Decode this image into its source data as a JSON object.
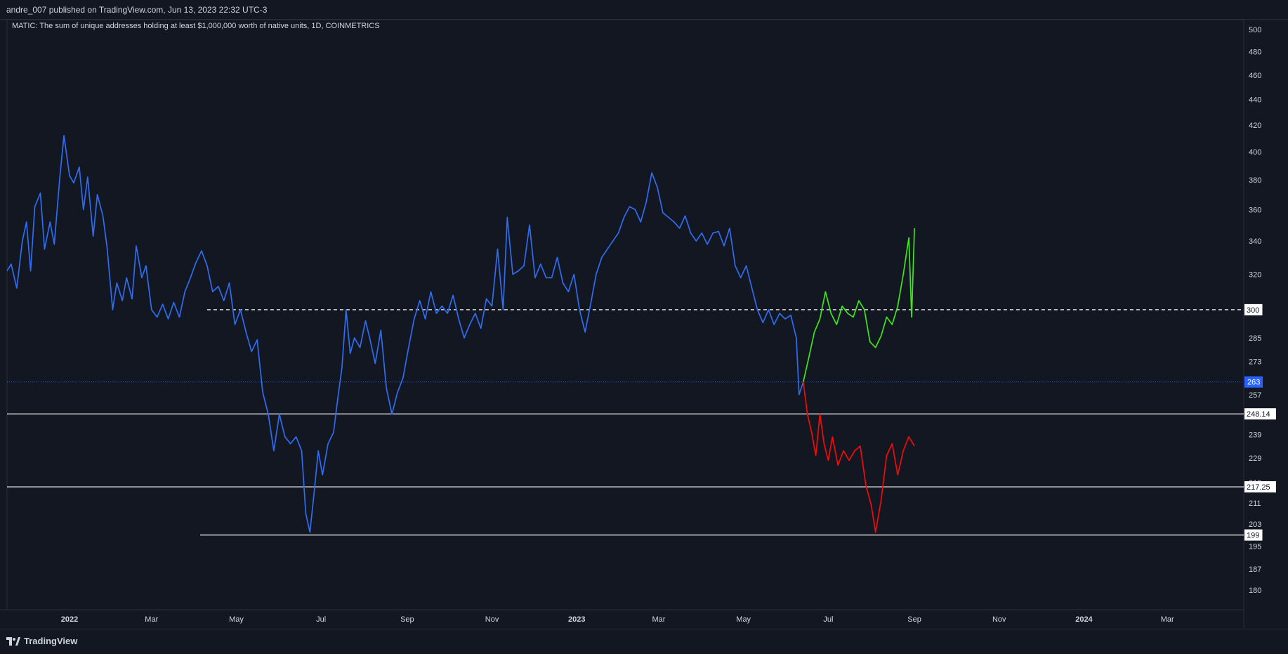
{
  "header": {
    "publisher": "andre_007 published on TradingView.com, Jun 13, 2023 22:32 UTC-3"
  },
  "footer": {
    "brand": "TradingView",
    "logo_icon": "tradingview-logo-icon"
  },
  "colors": {
    "background": "#131722",
    "history": "#2f6cf0",
    "bullish": "#3ee61b",
    "bearish": "#f50a0a",
    "level": "#ffffff",
    "current_price": "#2962ff"
  },
  "chart_data": {
    "type": "line",
    "title": "MATIC: The sum of unique addresses holding at least $1,000,000 worth of native units, 1D, COINMETRICS",
    "y_scale": "log",
    "ylim": [
      180,
      505
    ],
    "xlim": [
      "2021-11-17",
      "2024-04-25"
    ],
    "y_ticks": [
      180,
      187,
      195,
      203,
      211,
      219,
      229,
      239,
      248,
      257,
      263,
      273,
      285,
      300,
      320,
      340,
      360,
      380,
      400,
      420,
      440,
      460,
      480,
      500
    ],
    "x_ticks": [
      {
        "date": "2022-01-01",
        "label": "2022"
      },
      {
        "date": "2022-03-01",
        "label": "Mar"
      },
      {
        "date": "2022-05-01",
        "label": "May"
      },
      {
        "date": "2022-07-01",
        "label": "Jul"
      },
      {
        "date": "2022-09-01",
        "label": "Sep"
      },
      {
        "date": "2022-11-01",
        "label": "Nov"
      },
      {
        "date": "2023-01-01",
        "label": "2023"
      },
      {
        "date": "2023-03-01",
        "label": "Mar"
      },
      {
        "date": "2023-05-01",
        "label": "May"
      },
      {
        "date": "2023-07-01",
        "label": "Jul"
      },
      {
        "date": "2023-09-01",
        "label": "Sep"
      },
      {
        "date": "2023-11-01",
        "label": "Nov"
      },
      {
        "date": "2024-01-01",
        "label": "2024"
      },
      {
        "date": "2024-03-01",
        "label": "Mar"
      }
    ],
    "horizontal_levels": [
      {
        "value": 300,
        "label": "300",
        "style": "dashed",
        "from": "2022-04-10"
      },
      {
        "value": 248.14,
        "label": "248.14",
        "style": "solid",
        "from": "2021-11-17"
      },
      {
        "value": 217.25,
        "label": "217.25",
        "style": "solid",
        "from": "2021-11-17"
      },
      {
        "value": 199,
        "label": "199",
        "style": "solid",
        "from": "2022-04-05"
      }
    ],
    "current_value": {
      "value": 263,
      "label": "263"
    },
    "series": [
      {
        "role": "history",
        "points": [
          [
            "2021-11-17",
            322
          ],
          [
            "2021-11-20",
            326
          ],
          [
            "2021-11-24",
            312
          ],
          [
            "2021-11-28",
            340
          ],
          [
            "2021-12-01",
            352
          ],
          [
            "2021-12-04",
            322
          ],
          [
            "2021-12-07",
            362
          ],
          [
            "2021-12-11",
            371
          ],
          [
            "2021-12-14",
            335
          ],
          [
            "2021-12-18",
            352
          ],
          [
            "2021-12-21",
            338
          ],
          [
            "2021-12-25",
            382
          ],
          [
            "2021-12-28",
            412
          ],
          [
            "2022-01-01",
            383
          ],
          [
            "2022-01-04",
            378
          ],
          [
            "2022-01-08",
            389
          ],
          [
            "2022-01-11",
            360
          ],
          [
            "2022-01-14",
            382
          ],
          [
            "2022-01-18",
            343
          ],
          [
            "2022-01-21",
            370
          ],
          [
            "2022-01-25",
            356
          ],
          [
            "2022-01-28",
            336
          ],
          [
            "2022-02-01",
            300
          ],
          [
            "2022-02-04",
            315
          ],
          [
            "2022-02-08",
            305
          ],
          [
            "2022-02-11",
            318
          ],
          [
            "2022-02-15",
            306
          ],
          [
            "2022-02-18",
            337
          ],
          [
            "2022-02-22",
            318
          ],
          [
            "2022-02-25",
            325
          ],
          [
            "2022-03-01",
            300
          ],
          [
            "2022-03-05",
            296
          ],
          [
            "2022-03-09",
            303
          ],
          [
            "2022-03-13",
            295
          ],
          [
            "2022-03-17",
            304
          ],
          [
            "2022-03-21",
            296
          ],
          [
            "2022-03-25",
            310
          ],
          [
            "2022-03-29",
            318
          ],
          [
            "2022-04-02",
            327
          ],
          [
            "2022-04-06",
            334
          ],
          [
            "2022-04-10",
            325
          ],
          [
            "2022-04-14",
            310
          ],
          [
            "2022-04-18",
            313
          ],
          [
            "2022-04-22",
            305
          ],
          [
            "2022-04-26",
            315
          ],
          [
            "2022-04-30",
            292
          ],
          [
            "2022-05-04",
            300
          ],
          [
            "2022-05-08",
            288
          ],
          [
            "2022-05-12",
            278
          ],
          [
            "2022-05-16",
            284
          ],
          [
            "2022-05-20",
            258
          ],
          [
            "2022-05-24",
            248
          ],
          [
            "2022-05-28",
            232
          ],
          [
            "2022-06-01",
            248
          ],
          [
            "2022-06-05",
            238
          ],
          [
            "2022-06-09",
            235
          ],
          [
            "2022-06-13",
            238
          ],
          [
            "2022-06-17",
            232
          ],
          [
            "2022-06-20",
            207
          ],
          [
            "2022-06-23",
            200
          ],
          [
            "2022-06-26",
            215
          ],
          [
            "2022-06-29",
            232
          ],
          [
            "2022-07-02",
            222
          ],
          [
            "2022-07-06",
            235
          ],
          [
            "2022-07-10",
            240
          ],
          [
            "2022-07-13",
            255
          ],
          [
            "2022-07-16",
            270
          ],
          [
            "2022-07-19",
            300
          ],
          [
            "2022-07-22",
            277
          ],
          [
            "2022-07-25",
            285
          ],
          [
            "2022-07-29",
            280
          ],
          [
            "2022-08-02",
            294
          ],
          [
            "2022-08-05",
            285
          ],
          [
            "2022-08-09",
            272
          ],
          [
            "2022-08-13",
            289
          ],
          [
            "2022-08-17",
            260
          ],
          [
            "2022-08-21",
            248
          ],
          [
            "2022-08-25",
            258
          ],
          [
            "2022-08-29",
            265
          ],
          [
            "2022-09-02",
            280
          ],
          [
            "2022-09-06",
            295
          ],
          [
            "2022-09-10",
            305
          ],
          [
            "2022-09-14",
            295
          ],
          [
            "2022-09-18",
            310
          ],
          [
            "2022-09-22",
            298
          ],
          [
            "2022-09-26",
            302
          ],
          [
            "2022-09-30",
            298
          ],
          [
            "2022-10-04",
            308
          ],
          [
            "2022-10-08",
            295
          ],
          [
            "2022-10-12",
            285
          ],
          [
            "2022-10-16",
            292
          ],
          [
            "2022-10-20",
            298
          ],
          [
            "2022-10-24",
            290
          ],
          [
            "2022-10-28",
            306
          ],
          [
            "2022-11-01",
            302
          ],
          [
            "2022-11-05",
            335
          ],
          [
            "2022-11-09",
            300
          ],
          [
            "2022-11-12",
            355
          ],
          [
            "2022-11-16",
            320
          ],
          [
            "2022-11-20",
            322
          ],
          [
            "2022-11-24",
            325
          ],
          [
            "2022-11-28",
            350
          ],
          [
            "2022-12-02",
            318
          ],
          [
            "2022-12-06",
            326
          ],
          [
            "2022-12-10",
            318
          ],
          [
            "2022-12-14",
            318
          ],
          [
            "2022-12-18",
            330
          ],
          [
            "2022-12-22",
            315
          ],
          [
            "2022-12-26",
            310
          ],
          [
            "2022-12-30",
            320
          ],
          [
            "2023-01-03",
            300
          ],
          [
            "2023-01-07",
            288
          ],
          [
            "2023-01-11",
            303
          ],
          [
            "2023-01-15",
            320
          ],
          [
            "2023-01-19",
            330
          ],
          [
            "2023-01-23",
            335
          ],
          [
            "2023-01-27",
            340
          ],
          [
            "2023-01-31",
            345
          ],
          [
            "2023-02-04",
            355
          ],
          [
            "2023-02-08",
            362
          ],
          [
            "2023-02-12",
            360
          ],
          [
            "2023-02-16",
            352
          ],
          [
            "2023-02-20",
            365
          ],
          [
            "2023-02-24",
            385
          ],
          [
            "2023-02-28",
            375
          ],
          [
            "2023-03-04",
            358
          ],
          [
            "2023-03-08",
            355
          ],
          [
            "2023-03-12",
            352
          ],
          [
            "2023-03-16",
            348
          ],
          [
            "2023-03-20",
            356
          ],
          [
            "2023-03-24",
            345
          ],
          [
            "2023-03-28",
            340
          ],
          [
            "2023-04-01",
            345
          ],
          [
            "2023-04-05",
            338
          ],
          [
            "2023-04-09",
            345
          ],
          [
            "2023-04-13",
            346
          ],
          [
            "2023-04-17",
            337
          ],
          [
            "2023-04-21",
            348
          ],
          [
            "2023-04-25",
            325
          ],
          [
            "2023-04-29",
            318
          ],
          [
            "2023-05-03",
            325
          ],
          [
            "2023-05-07",
            312
          ],
          [
            "2023-05-11",
            300
          ],
          [
            "2023-05-15",
            293
          ],
          [
            "2023-05-19",
            300
          ],
          [
            "2023-05-23",
            292
          ],
          [
            "2023-05-27",
            298
          ],
          [
            "2023-05-31",
            295
          ],
          [
            "2023-06-04",
            297
          ],
          [
            "2023-06-08",
            285
          ],
          [
            "2023-06-10",
            257
          ],
          [
            "2023-06-13",
            263
          ]
        ]
      },
      {
        "role": "bullish projection",
        "points": [
          [
            "2023-06-13",
            263
          ],
          [
            "2023-06-17",
            275
          ],
          [
            "2023-06-21",
            288
          ],
          [
            "2023-06-25",
            295
          ],
          [
            "2023-06-29",
            310
          ],
          [
            "2023-07-03",
            298
          ],
          [
            "2023-07-07",
            292
          ],
          [
            "2023-07-11",
            302
          ],
          [
            "2023-07-15",
            298
          ],
          [
            "2023-07-19",
            296
          ],
          [
            "2023-07-23",
            305
          ],
          [
            "2023-07-27",
            300
          ],
          [
            "2023-07-31",
            283
          ],
          [
            "2023-08-04",
            280
          ],
          [
            "2023-08-08",
            286
          ],
          [
            "2023-08-12",
            296
          ],
          [
            "2023-08-16",
            292
          ],
          [
            "2023-08-20",
            302
          ],
          [
            "2023-08-24",
            320
          ],
          [
            "2023-08-28",
            342
          ],
          [
            "2023-08-30",
            296
          ],
          [
            "2023-09-01",
            348
          ]
        ]
      },
      {
        "role": "bearish projection",
        "points": [
          [
            "2023-06-13",
            263
          ],
          [
            "2023-06-16",
            248
          ],
          [
            "2023-06-19",
            240
          ],
          [
            "2023-06-22",
            230
          ],
          [
            "2023-06-25",
            248
          ],
          [
            "2023-06-28",
            235
          ],
          [
            "2023-07-01",
            228
          ],
          [
            "2023-07-04",
            238
          ],
          [
            "2023-07-08",
            226
          ],
          [
            "2023-07-12",
            232
          ],
          [
            "2023-07-16",
            228
          ],
          [
            "2023-07-20",
            232
          ],
          [
            "2023-07-24",
            234
          ],
          [
            "2023-07-28",
            218
          ],
          [
            "2023-08-01",
            210
          ],
          [
            "2023-08-04",
            200
          ],
          [
            "2023-08-08",
            212
          ],
          [
            "2023-08-12",
            230
          ],
          [
            "2023-08-16",
            235
          ],
          [
            "2023-08-20",
            222
          ],
          [
            "2023-08-24",
            232
          ],
          [
            "2023-08-28",
            238
          ],
          [
            "2023-09-01",
            234
          ]
        ]
      }
    ]
  }
}
